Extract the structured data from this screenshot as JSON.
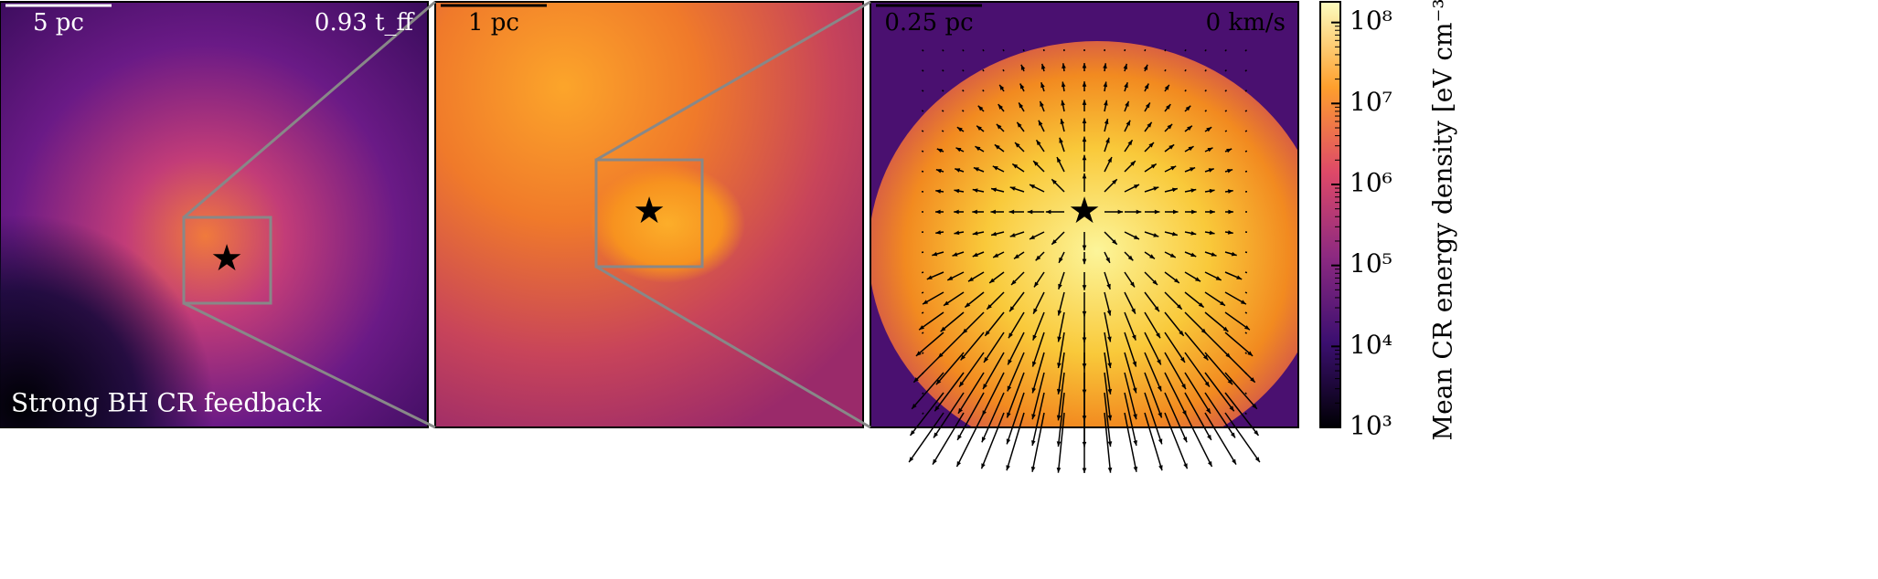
{
  "panels": [
    {
      "scale_bar": "5 pc",
      "time": "0.93 t_ff",
      "label": "Strong BH CR feedback"
    },
    {
      "scale_bar": "1 pc"
    },
    {
      "scale_bar": "0.25 pc",
      "velocity": "0 km/s"
    }
  ],
  "colorbar": {
    "label": "Mean CR energy density [eV cm⁻³]",
    "scale": "log",
    "lim": [
      1000,
      180000000
    ],
    "ticks": [
      {
        "value": 1000,
        "label": "10³"
      },
      {
        "value": 10000,
        "label": "10⁴"
      },
      {
        "value": 100000,
        "label": "10⁵"
      },
      {
        "value": 1000000,
        "label": "10⁶"
      },
      {
        "value": 10000000,
        "label": "10⁷"
      },
      {
        "value": 100000000,
        "label": "10⁸"
      }
    ]
  }
}
